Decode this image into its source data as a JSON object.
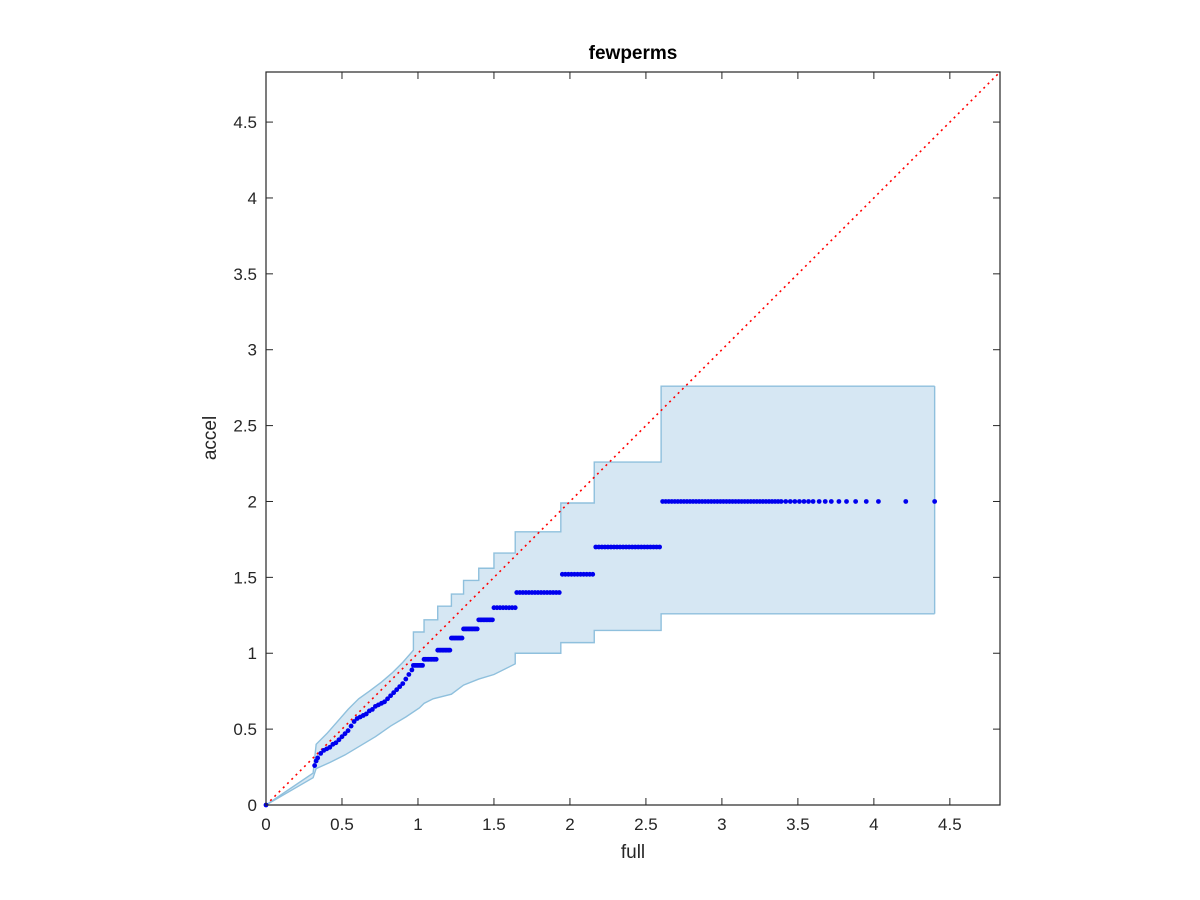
{
  "chart_data": {
    "type": "scatter",
    "title": "fewperms",
    "xlabel": "full",
    "ylabel": "accel",
    "xlim": [
      0,
      4.83
    ],
    "ylim": [
      0,
      4.83
    ],
    "xticks": [
      0,
      0.5,
      1,
      1.5,
      2,
      2.5,
      3,
      3.5,
      4,
      4.5
    ],
    "yticks": [
      0,
      0.5,
      1,
      1.5,
      2,
      2.5,
      3,
      3.5,
      4,
      4.5
    ],
    "xtick_labels": [
      "0",
      "0.5",
      "1",
      "1.5",
      "2",
      "2.5",
      "3",
      "3.5",
      "4",
      "4.5"
    ],
    "ytick_labels": [
      "0",
      "0.5",
      "1",
      "1.5",
      "2",
      "2.5",
      "3",
      "3.5",
      "4",
      "4.5"
    ],
    "grid": false,
    "colors": {
      "points": "#0000ee",
      "band_fill": "#d6e7f3",
      "band_edge": "#8fc0dd",
      "reference_line": "#ff0000",
      "axes": "#262626"
    },
    "reference_line": {
      "x": [
        0,
        4.83
      ],
      "y": [
        0,
        4.83
      ],
      "style": "dotted"
    },
    "band": {
      "upper": [
        [
          0,
          0
        ],
        [
          0.31,
          0.21
        ],
        [
          0.33,
          0.4
        ],
        [
          0.4,
          0.47
        ],
        [
          0.47,
          0.55
        ],
        [
          0.54,
          0.63
        ],
        [
          0.61,
          0.7
        ],
        [
          0.68,
          0.75
        ],
        [
          0.76,
          0.81
        ],
        [
          0.83,
          0.87
        ],
        [
          0.9,
          0.94
        ],
        [
          0.97,
          1.02
        ],
        [
          0.97,
          1.14
        ],
        [
          1.04,
          1.14
        ],
        [
          1.04,
          1.22
        ],
        [
          1.13,
          1.22
        ],
        [
          1.13,
          1.31
        ],
        [
          1.22,
          1.31
        ],
        [
          1.22,
          1.39
        ],
        [
          1.3,
          1.39
        ],
        [
          1.3,
          1.48
        ],
        [
          1.4,
          1.48
        ],
        [
          1.4,
          1.56
        ],
        [
          1.5,
          1.56
        ],
        [
          1.5,
          1.66
        ],
        [
          1.64,
          1.66
        ],
        [
          1.64,
          1.8
        ],
        [
          1.94,
          1.8
        ],
        [
          1.94,
          1.99
        ],
        [
          2.16,
          1.99
        ],
        [
          2.16,
          2.26
        ],
        [
          2.6,
          2.26
        ],
        [
          2.6,
          2.76
        ],
        [
          4.4,
          2.76
        ]
      ],
      "lower": [
        [
          0,
          0
        ],
        [
          0.31,
          0.18
        ],
        [
          0.33,
          0.24
        ],
        [
          0.42,
          0.28
        ],
        [
          0.52,
          0.33
        ],
        [
          0.62,
          0.39
        ],
        [
          0.72,
          0.45
        ],
        [
          0.82,
          0.52
        ],
        [
          0.92,
          0.58
        ],
        [
          1.01,
          0.64
        ],
        [
          1.04,
          0.67
        ],
        [
          1.1,
          0.7
        ],
        [
          1.22,
          0.73
        ],
        [
          1.3,
          0.79
        ],
        [
          1.4,
          0.83
        ],
        [
          1.5,
          0.86
        ],
        [
          1.64,
          0.93
        ],
        [
          1.64,
          1.0
        ],
        [
          1.94,
          1.0
        ],
        [
          1.94,
          1.07
        ],
        [
          2.16,
          1.07
        ],
        [
          2.16,
          1.15
        ],
        [
          2.6,
          1.15
        ],
        [
          2.6,
          1.26
        ],
        [
          4.4,
          1.26
        ]
      ]
    },
    "series": [
      {
        "x": [
          0,
          0.32,
          0.33,
          0.34,
          0.36,
          0.38,
          0.4,
          0.42,
          0.44,
          0.46,
          0.48,
          0.5,
          0.52,
          0.54,
          0.56,
          0.58,
          0.6,
          0.62,
          0.64,
          0.66,
          0.68,
          0.7,
          0.72,
          0.74,
          0.76,
          0.78,
          0.8,
          0.82,
          0.84,
          0.86,
          0.88,
          0.9,
          0.92,
          0.94,
          0.96
        ],
        "y": [
          0,
          0.26,
          0.29,
          0.31,
          0.34,
          0.36,
          0.37,
          0.38,
          0.4,
          0.41,
          0.43,
          0.45,
          0.47,
          0.49,
          0.52,
          0.55,
          0.57,
          0.58,
          0.59,
          0.6,
          0.62,
          0.63,
          0.65,
          0.66,
          0.67,
          0.68,
          0.7,
          0.72,
          0.74,
          0.76,
          0.78,
          0.8,
          0.83,
          0.86,
          0.89
        ]
      },
      {
        "x": [
          0.97,
          0.98,
          0.99,
          1.0,
          1.01,
          1.02,
          1.03
        ],
        "y": [
          0.92,
          0.92,
          0.92,
          0.92,
          0.92,
          0.92,
          0.92
        ]
      },
      {
        "x": [
          1.04,
          1.05,
          1.06,
          1.07,
          1.08,
          1.09,
          1.1,
          1.11,
          1.12
        ],
        "y": [
          0.96,
          0.96,
          0.96,
          0.96,
          0.96,
          0.96,
          0.96,
          0.96,
          0.96
        ]
      },
      {
        "x": [
          1.13,
          1.14,
          1.15,
          1.16,
          1.17,
          1.18,
          1.19,
          1.2,
          1.21
        ],
        "y": [
          1.02,
          1.02,
          1.02,
          1.02,
          1.02,
          1.02,
          1.02,
          1.02,
          1.02
        ]
      },
      {
        "x": [
          1.22,
          1.23,
          1.24,
          1.25,
          1.26,
          1.27,
          1.28,
          1.29
        ],
        "y": [
          1.1,
          1.1,
          1.1,
          1.1,
          1.1,
          1.1,
          1.1,
          1.1
        ]
      },
      {
        "x": [
          1.3,
          1.31,
          1.32,
          1.33,
          1.34,
          1.35,
          1.36,
          1.37,
          1.38,
          1.39
        ],
        "y": [
          1.16,
          1.16,
          1.16,
          1.16,
          1.16,
          1.16,
          1.16,
          1.16,
          1.16,
          1.16
        ]
      },
      {
        "x": [
          1.4,
          1.41,
          1.42,
          1.43,
          1.44,
          1.45,
          1.46,
          1.47,
          1.48,
          1.49
        ],
        "y": [
          1.22,
          1.22,
          1.22,
          1.22,
          1.22,
          1.22,
          1.22,
          1.22,
          1.22,
          1.22
        ]
      },
      {
        "x": [
          1.5,
          1.52,
          1.54,
          1.56,
          1.58,
          1.6,
          1.62,
          1.64
        ],
        "y": [
          1.3,
          1.3,
          1.3,
          1.3,
          1.3,
          1.3,
          1.3,
          1.3
        ]
      },
      {
        "x": [
          1.65,
          1.67,
          1.69,
          1.71,
          1.73,
          1.75,
          1.77,
          1.79,
          1.81,
          1.83,
          1.85,
          1.87,
          1.89,
          1.91,
          1.93
        ],
        "y": [
          1.4,
          1.4,
          1.4,
          1.4,
          1.4,
          1.4,
          1.4,
          1.4,
          1.4,
          1.4,
          1.4,
          1.4,
          1.4,
          1.4,
          1.4
        ]
      },
      {
        "x": [
          1.95,
          1.97,
          1.99,
          2.01,
          2.03,
          2.05,
          2.07,
          2.09,
          2.11,
          2.13,
          2.15
        ],
        "y": [
          1.52,
          1.52,
          1.52,
          1.52,
          1.52,
          1.52,
          1.52,
          1.52,
          1.52,
          1.52,
          1.52
        ]
      },
      {
        "x": [
          2.17,
          2.19,
          2.21,
          2.23,
          2.25,
          2.27,
          2.29,
          2.31,
          2.33,
          2.35,
          2.37,
          2.39,
          2.41,
          2.43,
          2.45,
          2.47,
          2.49,
          2.51,
          2.53,
          2.55,
          2.57,
          2.59
        ],
        "y": [
          1.7,
          1.7,
          1.7,
          1.7,
          1.7,
          1.7,
          1.7,
          1.7,
          1.7,
          1.7,
          1.7,
          1.7,
          1.7,
          1.7,
          1.7,
          1.7,
          1.7,
          1.7,
          1.7,
          1.7,
          1.7,
          1.7
        ]
      },
      {
        "x": [
          2.61,
          2.63,
          2.65,
          2.67,
          2.69,
          2.71,
          2.73,
          2.75,
          2.77,
          2.79,
          2.81,
          2.83,
          2.85,
          2.87,
          2.89,
          2.91,
          2.93,
          2.95,
          2.97,
          2.99,
          3.01,
          3.03,
          3.05,
          3.07,
          3.09,
          3.11,
          3.13,
          3.15,
          3.17,
          3.19,
          3.21,
          3.23,
          3.25,
          3.27,
          3.29,
          3.31,
          3.33,
          3.35,
          3.37,
          3.39,
          3.42,
          3.45,
          3.48,
          3.51,
          3.54,
          3.57,
          3.6,
          3.64,
          3.68,
          3.72,
          3.77,
          3.82,
          3.88,
          3.95,
          4.03,
          4.21,
          4.4
        ],
        "y": [
          2.0,
          2.0,
          2.0,
          2.0,
          2.0,
          2.0,
          2.0,
          2.0,
          2.0,
          2.0,
          2.0,
          2.0,
          2.0,
          2.0,
          2.0,
          2.0,
          2.0,
          2.0,
          2.0,
          2.0,
          2.0,
          2.0,
          2.0,
          2.0,
          2.0,
          2.0,
          2.0,
          2.0,
          2.0,
          2.0,
          2.0,
          2.0,
          2.0,
          2.0,
          2.0,
          2.0,
          2.0,
          2.0,
          2.0,
          2.0,
          2.0,
          2.0,
          2.0,
          2.0,
          2.0,
          2.0,
          2.0,
          2.0,
          2.0,
          2.0,
          2.0,
          2.0,
          2.0,
          2.0,
          2.0,
          2.0,
          2.0
        ]
      }
    ]
  }
}
